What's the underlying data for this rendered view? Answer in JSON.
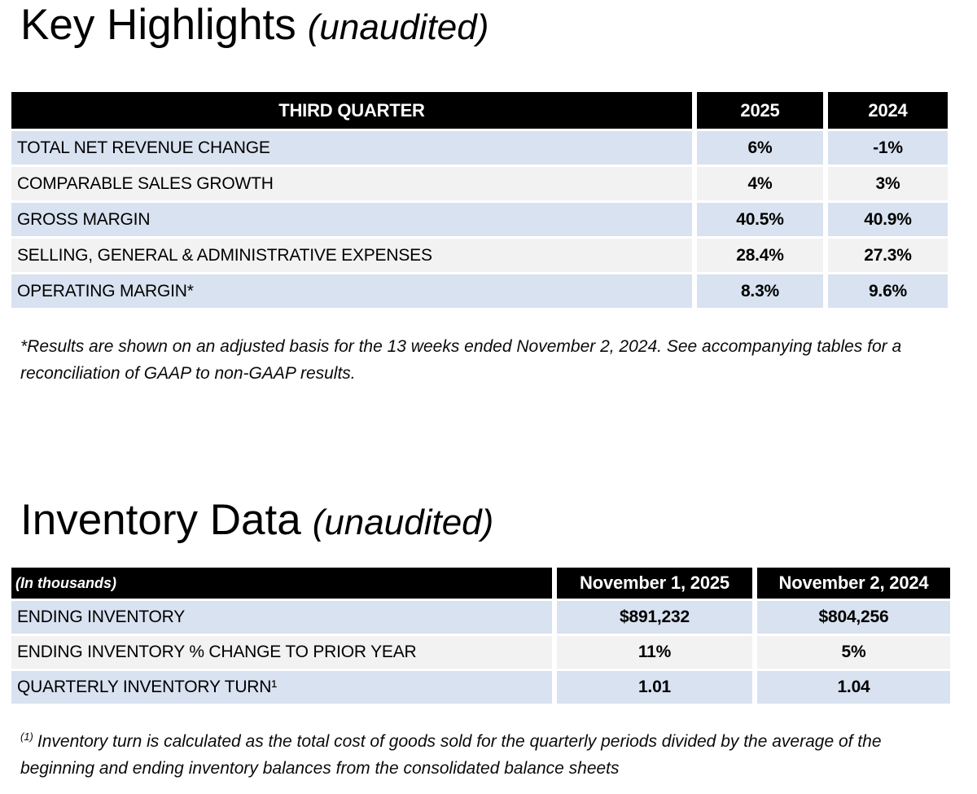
{
  "titles": {
    "key_highlights": "Key Highlights",
    "key_highlights_suffix": "(unaudited)",
    "inventory_data": "Inventory Data",
    "inventory_data_suffix": "(unaudited)"
  },
  "highlights_table": {
    "header": {
      "label": "THIRD QUARTER",
      "year1": "2025",
      "year2": "2024"
    },
    "rows": [
      {
        "label": "TOTAL NET REVENUE CHANGE",
        "y2025": "6%",
        "y2024": "-1%"
      },
      {
        "label": "COMPARABLE SALES GROWTH",
        "y2025": "4%",
        "y2024": "3%"
      },
      {
        "label": "GROSS MARGIN",
        "y2025": "40.5%",
        "y2024": "40.9%"
      },
      {
        "label": "SELLING, GENERAL & ADMINISTRATIVE EXPENSES",
        "y2025": "28.4%",
        "y2024": "27.3%"
      },
      {
        "label": "OPERATING MARGIN*",
        "y2025": "8.3%",
        "y2024": "9.6%"
      }
    ]
  },
  "inventory_table": {
    "header": {
      "label": "(In thousands)",
      "date1": "November 1, 2025",
      "date2": "November 2, 2024"
    },
    "rows": [
      {
        "label": "ENDING INVENTORY",
        "v1": "$891,232",
        "v2": "$804,256"
      },
      {
        "label": "ENDING INVENTORY % CHANGE TO PRIOR YEAR",
        "v1": "11%",
        "v2": "5%"
      },
      {
        "label": "QUARTERLY INVENTORY TURN¹",
        "v1": "1.01",
        "v2": "1.04"
      }
    ]
  },
  "footnotes": {
    "adjusted_basis": "*Results are shown on an adjusted basis for the 13 weeks ended November 2, 2024. See accompanying tables for a reconciliation of GAAP to non-GAAP results.",
    "inventory_turn_marker": "(1)",
    "inventory_turn": "Inventory turn is calculated as the total cost of goods sold for the quarterly periods divided by the average of the beginning and ending inventory balances from the consolidated balance sheets"
  },
  "colors": {
    "header_bg": "#000000",
    "header_text": "#ffffff",
    "row_blue": "#d9e2f0",
    "row_gray": "#f2f2f2"
  }
}
